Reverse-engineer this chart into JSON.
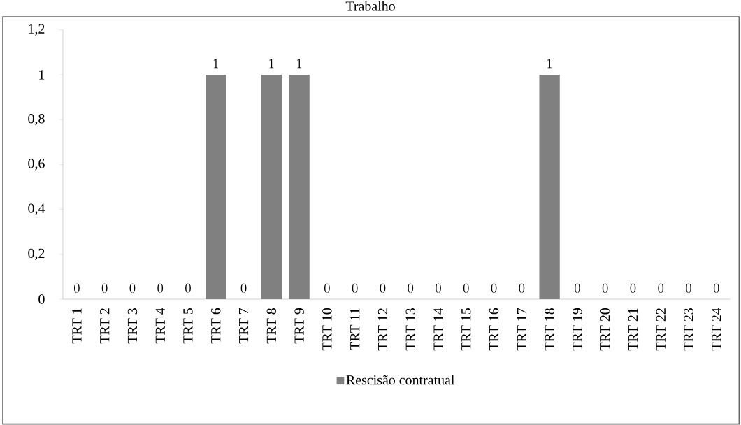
{
  "chart_data": {
    "type": "bar",
    "title": "Trabalho",
    "categories": [
      "TRT 1",
      "TRT 2",
      "TRT 3",
      "TRT 4",
      "TRT 5",
      "TRT 6",
      "TRT 7",
      "TRT 8",
      "TRT 9",
      "TRT 10",
      "TRT 11",
      "TRT 12",
      "TRT 13",
      "TRT 14",
      "TRT 15",
      "TRT 16",
      "TRT 17",
      "TRT 18",
      "TRT 19",
      "TRT 20",
      "TRT 21",
      "TRT 22",
      "TRT 23",
      "TRT 24"
    ],
    "series": [
      {
        "name": "Rescisão contratual",
        "color": "#808080",
        "values": [
          0,
          0,
          0,
          0,
          0,
          1,
          0,
          1,
          1,
          0,
          0,
          0,
          0,
          0,
          0,
          0,
          0,
          1,
          0,
          0,
          0,
          0,
          0,
          0
        ]
      }
    ],
    "ylim": [
      0,
      1.2
    ],
    "yticks": [
      0,
      {
        "value": 0.2,
        "label": "0,2"
      },
      {
        "value": 0.4,
        "label": "0,4"
      },
      {
        "value": 0.6,
        "label": "0,6"
      },
      {
        "value": 0.8,
        "label": "0,8"
      },
      1,
      {
        "value": 1.2,
        "label": "1,2"
      }
    ],
    "data_labels": true,
    "grid": false,
    "legend": "bottom"
  }
}
